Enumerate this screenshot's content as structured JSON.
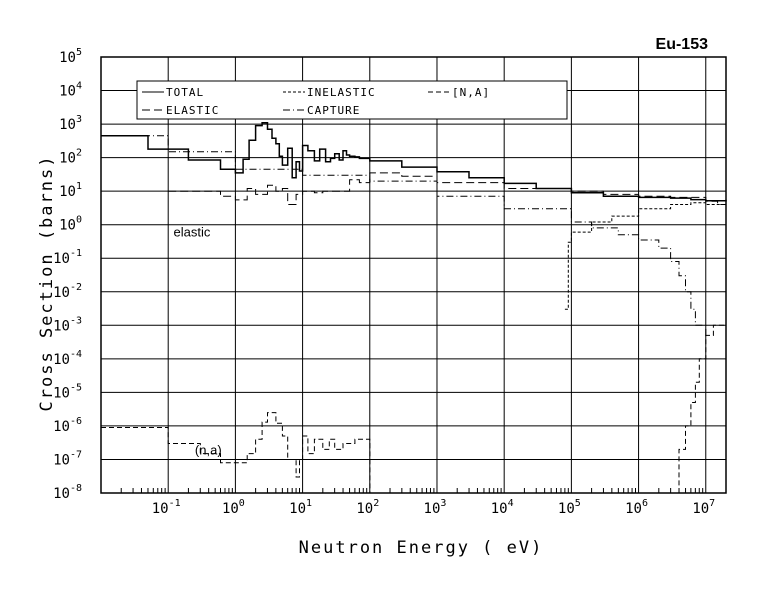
{
  "chart_data": {
    "type": "line",
    "title": "Eu-153",
    "xlabel": "Neutron Energy ( eV)",
    "ylabel": "Cross Section (barns)",
    "x_scale": "log",
    "y_scale": "log",
    "xlim": [
      0.01,
      20000000
    ],
    "ylim": [
      1e-08,
      100000
    ],
    "grid": true,
    "legend_position": "top-left",
    "x_ticks": [
      {
        "base": "10",
        "exp": "-1",
        "value": 0.1
      },
      {
        "base": "10",
        "exp": "0",
        "value": 1
      },
      {
        "base": "10",
        "exp": "1",
        "value": 10
      },
      {
        "base": "10",
        "exp": "2",
        "value": 100
      },
      {
        "base": "10",
        "exp": "3",
        "value": 1000
      },
      {
        "base": "10",
        "exp": "4",
        "value": 10000
      },
      {
        "base": "10",
        "exp": "5",
        "value": 100000
      },
      {
        "base": "10",
        "exp": "6",
        "value": 1000000
      },
      {
        "base": "10",
        "exp": "7",
        "value": 10000000
      }
    ],
    "y_ticks": [
      {
        "base": "10",
        "exp": "5",
        "value": 100000
      },
      {
        "base": "10",
        "exp": "4",
        "value": 10000
      },
      {
        "base": "10",
        "exp": "3",
        "value": 1000
      },
      {
        "base": "10",
        "exp": "2",
        "value": 100
      },
      {
        "base": "10",
        "exp": "1",
        "value": 10
      },
      {
        "base": "10",
        "exp": "0",
        "value": 1
      },
      {
        "base": "10",
        "exp": "-1",
        "value": 0.1
      },
      {
        "base": "10",
        "exp": "-2",
        "value": 0.01
      },
      {
        "base": "10",
        "exp": "-3",
        "value": 0.001
      },
      {
        "base": "10",
        "exp": "-4",
        "value": 0.0001
      },
      {
        "base": "10",
        "exp": "-5",
        "value": 1e-05
      },
      {
        "base": "10",
        "exp": "-6",
        "value": 1e-06
      },
      {
        "base": "10",
        "exp": "-7",
        "value": 1e-07
      },
      {
        "base": "10",
        "exp": "-8",
        "value": 1e-08
      }
    ],
    "annotations": [
      {
        "text": "elastic",
        "x": 0.12,
        "y": 0.45
      },
      {
        "text": "(n,a)",
        "x": 0.25,
        "y": 1.4e-07
      }
    ],
    "series": [
      {
        "name": "TOTAL",
        "dash": "solid",
        "x": [
          0.01,
          0.05,
          0.2,
          0.6,
          1.0,
          1.3,
          1.6,
          2.0,
          2.5,
          3.0,
          3.5,
          4.0,
          4.5,
          5.0,
          6.0,
          7.0,
          8.0,
          9.0,
          10,
          12,
          15,
          18,
          22,
          26,
          30,
          35,
          40,
          45,
          50,
          60,
          70,
          100,
          300,
          1000,
          3000,
          10000,
          30000,
          100000,
          300000,
          1000000,
          3000000,
          6000000,
          10000000,
          20000000
        ],
        "y": [
          450,
          180,
          85,
          45,
          35,
          90,
          330,
          900,
          1100,
          700,
          380,
          260,
          110,
          60,
          190,
          25,
          75,
          40,
          230,
          160,
          80,
          180,
          75,
          95,
          130,
          85,
          160,
          120,
          110,
          105,
          95,
          80,
          52,
          38,
          25,
          17,
          12,
          9,
          7,
          6.5,
          6.2,
          5.6,
          5.2,
          5.5
        ]
      },
      {
        "name": "ELASTIC",
        "dash": "longdash",
        "x": [
          0.1,
          0.3,
          0.6,
          1.0,
          1.5,
          2.0,
          3.0,
          4.0,
          5.0,
          6.0,
          8.0,
          10,
          15,
          20,
          30,
          50,
          70,
          100,
          300,
          1000,
          10000,
          100000,
          300000,
          1000000,
          3000000,
          10000000,
          15000000,
          20000000
        ],
        "y": [
          10,
          10,
          7,
          5.5,
          12,
          8,
          15,
          10,
          12,
          4,
          8,
          10,
          9,
          10,
          10,
          22,
          18,
          35,
          28,
          18,
          12,
          10,
          8,
          7,
          6.5,
          5,
          4,
          0.5
        ]
      },
      {
        "name": "INELASTIC",
        "dash": "shortdash",
        "x": [
          80000,
          90000,
          100000,
          200000,
          400000,
          1000000,
          3000000,
          6000000,
          10000000,
          20000000
        ],
        "y": [
          0.003,
          0.3,
          0.6,
          1.2,
          1.8,
          3.0,
          4.0,
          4.5,
          4.0,
          3.5
        ]
      },
      {
        "name": "CAPTURE",
        "dash": "dashdot",
        "x": [
          0.01,
          0.1,
          1.0,
          10,
          100,
          1000,
          10000,
          100000,
          200000,
          500000,
          1000000,
          2000000,
          3000000,
          4000000,
          5000000,
          6000000,
          7000000,
          10000000
        ],
        "y": [
          450,
          150,
          45,
          30,
          20,
          7,
          3,
          1.2,
          0.8,
          0.5,
          0.35,
          0.2,
          0.08,
          0.03,
          0.01,
          0.003,
          0.001,
          0.0004
        ]
      },
      {
        "name": "[N,A]",
        "dash": "dash",
        "x": [
          0.01,
          0.1,
          0.3,
          0.6,
          1.0,
          1.5,
          2.0,
          2.5,
          3.0,
          4.0,
          5.0,
          6.0,
          8.0,
          9.0,
          10,
          12,
          15,
          20,
          25,
          30,
          40,
          60,
          100,
          100.5
        ],
        "y": [
          9e-07,
          3e-07,
          1.5e-07,
          8e-08,
          8e-08,
          1.5e-07,
          4e-07,
          1.3e-06,
          2.5e-06,
          1.2e-06,
          5e-07,
          1e-07,
          3e-08,
          1e-07,
          5e-07,
          1.5e-07,
          4e-07,
          2e-07,
          4e-07,
          2e-07,
          3e-07,
          4e-07,
          3e-07,
          1e-08
        ]
      },
      {
        "name": "",
        "dash": "dash",
        "x": [
          3000000,
          4000000,
          5000000,
          6000000,
          7000000,
          8000000,
          10000000,
          13000000,
          20000000
        ],
        "y": [
          1e-08,
          2e-07,
          1e-06,
          5e-06,
          2e-05,
          0.0001,
          0.0005,
          0.001,
          0.002
        ]
      }
    ]
  }
}
